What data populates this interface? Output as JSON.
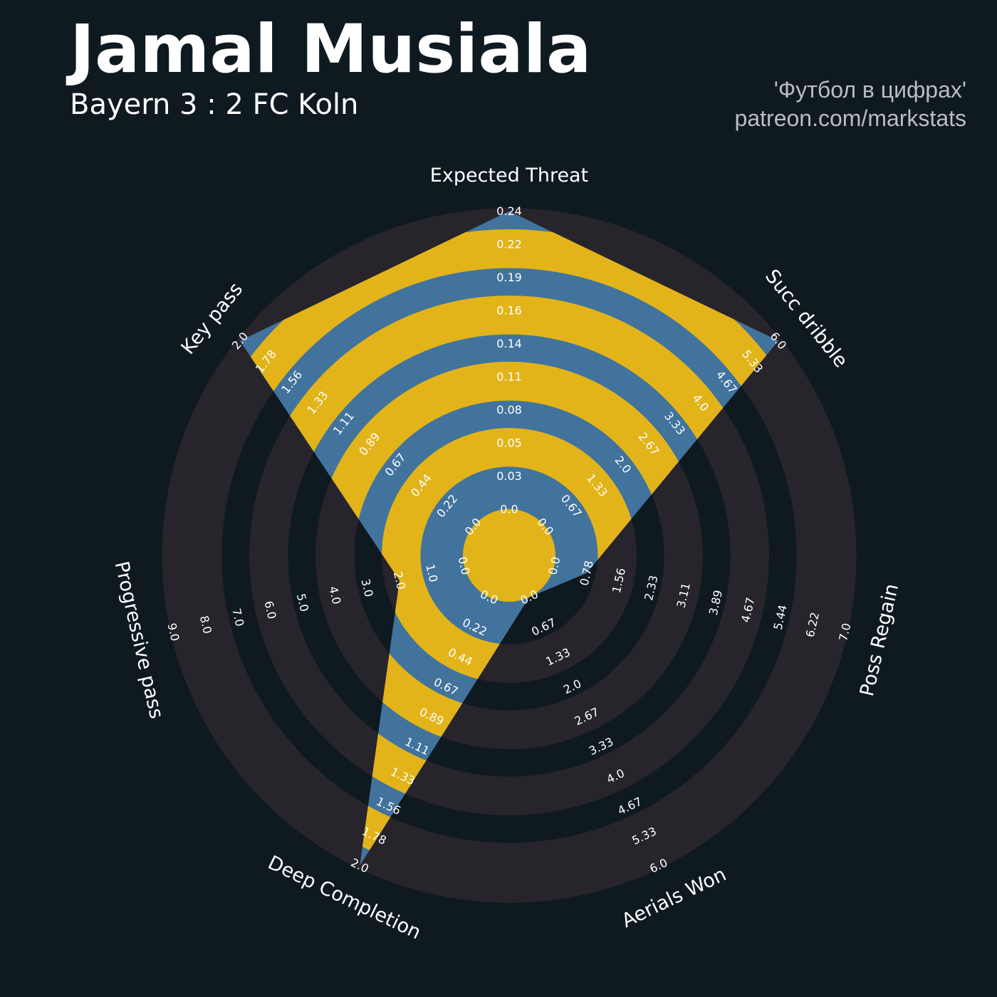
{
  "header": {
    "title": "Jamal Musiala",
    "subtitle": "Bayern 3 : 2 FC Koln",
    "credit_line1": "'Футбол в цифрах'",
    "credit_line2": "patreon.com/markstats"
  },
  "colors": {
    "background": "#0f1920",
    "ring_band": "#28242b",
    "player_fill": "#41739d",
    "player_band": "#e2b41a"
  },
  "chart_data": {
    "type": "radar",
    "title": "Jamal Musiala",
    "subtitle": "Bayern 3 : 2 FC Koln",
    "axes": [
      {
        "label": "Expected Threat",
        "min": 0.0,
        "max": 0.24,
        "value": 0.24,
        "ticks": [
          "0.0",
          "0.03",
          "0.05",
          "0.08",
          "0.11",
          "0.14",
          "0.16",
          "0.19",
          "0.22",
          "0.24"
        ]
      },
      {
        "label": "Succ dribble",
        "min": 0.0,
        "max": 6.0,
        "value": 6.0,
        "ticks": [
          "0.0",
          "0.67",
          "1.33",
          "2.0",
          "2.67",
          "3.33",
          "4.0",
          "4.67",
          "5.33",
          "6.0"
        ]
      },
      {
        "label": "Poss Regain",
        "min": 0.0,
        "max": 7.0,
        "value": 0.78,
        "ticks": [
          "0.0",
          "0.78",
          "1.56",
          "2.33",
          "3.11",
          "3.89",
          "4.67",
          "5.44",
          "6.22",
          "7.0"
        ]
      },
      {
        "label": "Aerials Won",
        "min": 0.0,
        "max": 6.0,
        "value": 0.0,
        "ticks": [
          "0.0",
          "0.67",
          "1.33",
          "2.0",
          "2.67",
          "3.33",
          "4.0",
          "4.67",
          "5.33",
          "6.0"
        ]
      },
      {
        "label": "Deep Completion",
        "min": 0.0,
        "max": 2.0,
        "value": 2.0,
        "ticks": [
          "0.0",
          "0.22",
          "0.44",
          "0.67",
          "0.89",
          "1.11",
          "1.33",
          "1.56",
          "1.78",
          "2.0"
        ]
      },
      {
        "label": "Progressive pass",
        "min": 0.0,
        "max": 9.0,
        "value": 2.0,
        "ticks": [
          "0.0",
          "1.0",
          "2.0",
          "3.0",
          "4.0",
          "5.0",
          "6.0",
          "7.0",
          "8.0",
          "9.0"
        ]
      },
      {
        "label": "Key pass",
        "min": 0.0,
        "max": 2.0,
        "value": 2.0,
        "ticks": [
          "0.0",
          "0.22",
          "0.44",
          "0.67",
          "0.89",
          "1.11",
          "1.33",
          "1.56",
          "1.78",
          "2.0"
        ]
      }
    ],
    "series": [
      {
        "name": "Jamal Musiala",
        "values": [
          0.24,
          6.0,
          0.78,
          0.0,
          2.0,
          2.0,
          2.0
        ]
      }
    ],
    "ring_count": 10,
    "grid": false,
    "legend": "none"
  }
}
